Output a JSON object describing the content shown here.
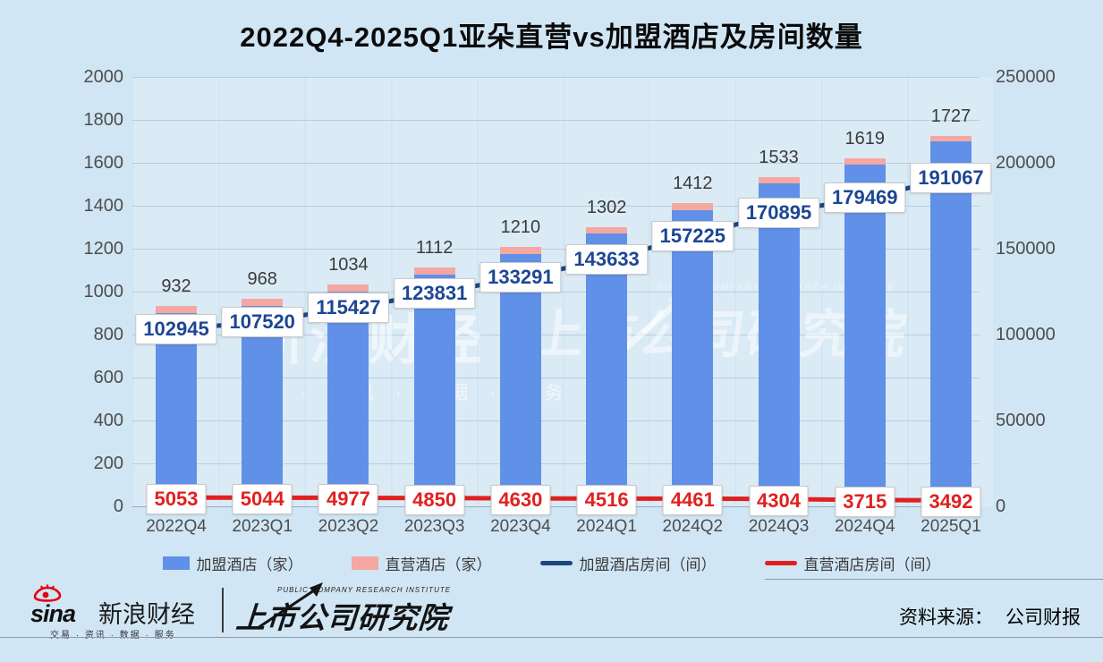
{
  "title": "2022Q4-2025Q1亚朵直营vs加盟酒店及房间数量",
  "chart_data": {
    "type": "combo",
    "categories": [
      "2022Q4",
      "2023Q1",
      "2023Q2",
      "2023Q3",
      "2023Q4",
      "2024Q1",
      "2024Q2",
      "2024Q3",
      "2024Q4",
      "2025Q1"
    ],
    "series": [
      {
        "name": "加盟酒店（家）",
        "type": "bar",
        "stack": "hotels",
        "color": "#6090e8",
        "values": [
          899,
          935,
          1000,
          1078,
          1177,
          1270,
          1381,
          1503,
          1590,
          1699
        ]
      },
      {
        "name": "直营酒店（家）",
        "type": "bar",
        "stack": "hotels",
        "color": "#f5a7a1",
        "values": [
          33,
          33,
          34,
          34,
          33,
          32,
          31,
          30,
          29,
          28
        ]
      },
      {
        "name": "加盟酒店房间（间）",
        "type": "line",
        "axis": "right",
        "color": "#1b4583",
        "values": [
          102945,
          107520,
          115427,
          123831,
          133291,
          143633,
          157225,
          170895,
          179469,
          191067
        ]
      },
      {
        "name": "直营酒店房间（间）",
        "type": "line",
        "axis": "right",
        "color": "#e02020",
        "values": [
          5053,
          5044,
          4977,
          4850,
          4630,
          4516,
          4461,
          4304,
          3715,
          3492
        ]
      }
    ],
    "bar_total_labels": [
      932,
      968,
      1034,
      1112,
      1210,
      1302,
      1412,
      1533,
      1619,
      1727
    ],
    "left_axis": {
      "min": 0,
      "max": 2000,
      "step": 200
    },
    "right_axis": {
      "min": 0,
      "max": 250000,
      "step": 50000
    },
    "grid": "horizontal",
    "legend_position": "bottom"
  },
  "colors": {
    "background": "#d1e6f4",
    "bar_franchise": "#6090e8",
    "bar_direct": "#f5a7a1",
    "line_franchise_rooms": "#1b4583",
    "line_direct_rooms": "#e02020",
    "value_box_text_blue": "#1d4693",
    "value_box_text_red": "#e02020"
  },
  "watermarks": {
    "sina_main": "新浪财经",
    "sina_sub": "· 资讯 · 数据 · 服务",
    "pcri_en": "PUBLIC COMPANY RESEARCH INSTITUTE",
    "pcri_cn": "上市公司研究院"
  },
  "footer": {
    "sina_logo_text": "sina",
    "sina_brand": "新浪财经",
    "sina_tagline": "交易 · 资讯 · 数据 · 服务",
    "pcri_en": "PUBLIC COMPANY RESEARCH INSTITUTE",
    "pcri_cn": "上市公司研究院",
    "source_label": "资料来源：",
    "source_value": "公司财报"
  }
}
